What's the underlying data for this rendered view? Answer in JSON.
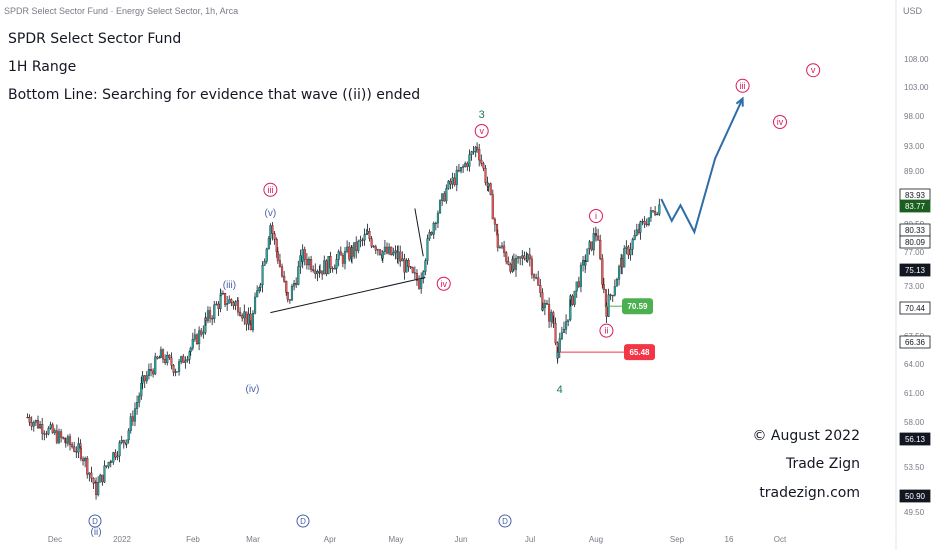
{
  "header": {
    "title": "SPDR Select Sector Fund · Energy Select Sector, 1h, Arca",
    "currency": "USD"
  },
  "annotations": {
    "fund": "SPDR Select Sector Fund",
    "range": "1H Range",
    "bottom_line": "Bottom Line: Searching for evidence that wave ((ii)) ended",
    "copyright": "© August 2022",
    "brand": "Trade Zign",
    "website": "tradezign.com"
  },
  "colors": {
    "up": "#26a69a",
    "down": "#ef5350",
    "candle": "#131722",
    "wave_red": "#d81b60",
    "wave_blue": "#4a5fa8",
    "wave_green": "#1b7a57",
    "projection": "#2f6ca8",
    "label_green_bg": "#4caf50",
    "label_red_bg": "#f23645",
    "axis_text": "#787b86"
  },
  "chart_data": {
    "type": "candlestick",
    "symbol": "XLE",
    "timeframe": "1h",
    "y_axis_ticks": [
      49.5,
      53.5,
      58.0,
      61.0,
      64.0,
      67.5,
      70.5,
      73.0,
      77.0,
      80.5,
      89.0,
      93.0,
      98.0,
      103.0,
      108.0
    ],
    "y_axis_tick_labels": [
      "49.50",
      "53.50",
      "58.00",
      "61.00",
      "64.00",
      "67.50",
      "70.50",
      "73.00",
      "77.00",
      "80.50",
      "89.00",
      "93.00",
      "98.00",
      "103.00",
      "108.00"
    ],
    "x_axis_labels": [
      "Dec",
      "2022",
      "Feb",
      "Mar",
      "Apr",
      "May",
      "Jun",
      "Jul",
      "Aug",
      "Sep",
      "16",
      "Oct"
    ],
    "price_labels": [
      {
        "value": "83.93",
        "style": "white"
      },
      {
        "value": "83.77",
        "style": "green"
      },
      {
        "value": "80.33",
        "style": "white"
      },
      {
        "value": "80.09",
        "style": "white"
      },
      {
        "value": "75.13",
        "style": "dark"
      },
      {
        "value": "70.44",
        "style": "white"
      },
      {
        "value": "66.36",
        "style": "white"
      },
      {
        "value": "56.13",
        "style": "dark"
      },
      {
        "value": "50.90",
        "style": "dark"
      }
    ],
    "tag_labels": [
      {
        "value": "70.59",
        "color": "green"
      },
      {
        "value": "65.48",
        "color": "red"
      }
    ],
    "price_path": [
      [
        "Nov 29",
        58.5
      ],
      [
        "Dec 6",
        56.0
      ],
      [
        "Dec 13",
        55.0
      ],
      [
        "Dec 20",
        51.5
      ],
      [
        "Dec 27",
        54.5
      ],
      [
        "Jan 3",
        56.5
      ],
      [
        "Jan 10",
        62.0
      ],
      [
        "Jan 18",
        65.0
      ],
      [
        "Jan 25",
        63.5
      ],
      [
        "Jan 31",
        66.0
      ],
      [
        "Feb 7",
        69.0
      ],
      [
        "Feb 14",
        71.5
      ],
      [
        "Feb 22",
        71.0
      ],
      [
        "Feb 28",
        68.5
      ],
      [
        "Mar 4",
        74.0
      ],
      [
        "Mar 8",
        80.5
      ],
      [
        "Mar 11",
        76.5
      ],
      [
        "Mar 15",
        71.0
      ],
      [
        "Mar 21",
        76.5
      ],
      [
        "Mar 28",
        75.0
      ],
      [
        "Apr 4",
        76.0
      ],
      [
        "Apr 11",
        77.0
      ],
      [
        "Apr 18",
        79.0
      ],
      [
        "Apr 25",
        77.0
      ],
      [
        "May 2",
        76.5
      ],
      [
        "May 9",
        74.0
      ],
      [
        "May 12",
        73.5
      ],
      [
        "May 18",
        80.0
      ],
      [
        "May 25",
        86.0
      ],
      [
        "Jun 1",
        89.0
      ],
      [
        "Jun 8",
        93.0
      ],
      [
        "Jun 13",
        86.0
      ],
      [
        "Jun 17",
        78.0
      ],
      [
        "Jun 24",
        75.0
      ],
      [
        "Jun 30",
        77.0
      ],
      [
        "Jul 7",
        71.0
      ],
      [
        "Jul 12",
        69.0
      ],
      [
        "Jul 14",
        65.5
      ],
      [
        "Jul 20",
        71.0
      ],
      [
        "Jul 27",
        76.0
      ],
      [
        "Aug 1",
        79.5
      ],
      [
        "Aug 4",
        72.5
      ],
      [
        "Aug 5",
        70.5
      ],
      [
        "Aug 11",
        76.0
      ],
      [
        "Aug 18",
        80.0
      ],
      [
        "Aug 26",
        83.9
      ]
    ],
    "projection": [
      [
        "Aug 26",
        84.5
      ],
      [
        "Aug 30",
        81.0
      ],
      [
        "Sep 2",
        83.5
      ],
      [
        "Sep 6",
        79.5
      ],
      [
        "Sep 12",
        91.0
      ],
      [
        "Sep 20",
        101.0
      ]
    ],
    "trendline": [
      [
        "Mar 8",
        70.0
      ],
      [
        "May 15",
        74.0
      ]
    ],
    "channel_line": [
      [
        "May 10",
        83.0
      ],
      [
        "May 14",
        76.5
      ]
    ],
    "support_line": {
      "from": "Jul 15",
      "to": "Aug 21",
      "value": 65.48
    },
    "wave_labels": [
      {
        "text": "iii",
        "style": "red-circle",
        "at": [
          "Mar 8",
          81.5
        ]
      },
      {
        "text": "(v)",
        "style": "blue",
        "at": [
          "Mar 8",
          80.5
        ]
      },
      {
        "text": "(iii)",
        "style": "blue",
        "at": [
          "Feb 18",
          71.5
        ]
      },
      {
        "text": "(iv)",
        "style": "blue",
        "at": [
          "Mar 4",
          66.0
        ]
      },
      {
        "text": "iv",
        "style": "red-circle",
        "at": [
          "May 19",
          73.5
        ]
      },
      {
        "text": "3",
        "style": "green",
        "at": [
          "Jun 10",
          93.0
        ]
      },
      {
        "text": "v",
        "style": "red-circle",
        "at": [
          "Jun 10",
          93.0
        ]
      },
      {
        "text": "(ii)",
        "style": "blue",
        "at": [
          "Dec 20",
          51.0
        ]
      },
      {
        "text": "i",
        "style": "red-circle",
        "at": [
          "Aug 1",
          80.0
        ]
      },
      {
        "text": "ii",
        "style": "red-circle",
        "at": [
          "Aug 5",
          70.0
        ]
      },
      {
        "text": "4",
        "style": "green",
        "at": [
          "Jul 14",
          65.0
        ]
      },
      {
        "text": "iii",
        "style": "red-circle",
        "at": [
          "Sep 20",
          102.0
        ]
      },
      {
        "text": "iv",
        "style": "red-circle",
        "at": [
          "Oct 1",
          97.0
        ]
      },
      {
        "text": "v",
        "style": "red-circle",
        "at": [
          "Oct 10",
          106.0
        ]
      }
    ],
    "bottom_markers": [
      "D",
      "D",
      "D"
    ]
  }
}
